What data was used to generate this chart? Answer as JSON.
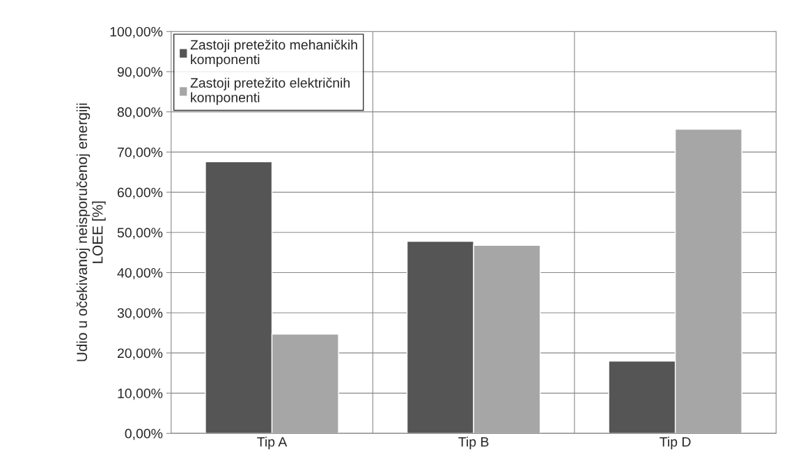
{
  "chart_data": {
    "type": "bar",
    "ylabel": "Udio u očekivanoj neisporučenoj energiji\nLOEE [%]",
    "categories": [
      "Tip A",
      "Tip B",
      "Tip D"
    ],
    "series": [
      {
        "name": "Zastoji pretežito mehaničkih komponenti",
        "color": "#555555",
        "values": [
          67.6,
          47.8,
          18.0
        ]
      },
      {
        "name": "Zastoji pretežito električnih komponenti",
        "color": "#a6a6a6",
        "values": [
          24.7,
          46.8,
          75.7
        ]
      }
    ],
    "ylim": [
      0,
      100
    ],
    "yticks": [
      {
        "value": 0,
        "label": "0,00%"
      },
      {
        "value": 10,
        "label": "10,00%"
      },
      {
        "value": 20,
        "label": "20,00%"
      },
      {
        "value": 30,
        "label": "30,00%"
      },
      {
        "value": 40,
        "label": "40,00%"
      },
      {
        "value": 50,
        "label": "50,00%"
      },
      {
        "value": 60,
        "label": "60,00%"
      },
      {
        "value": 70,
        "label": "70,00%"
      },
      {
        "value": 80,
        "label": "80,00%"
      },
      {
        "value": 90,
        "label": "90,00%"
      },
      {
        "value": 100,
        "label": "100,00%"
      }
    ],
    "grid": true,
    "legend": "top left"
  }
}
